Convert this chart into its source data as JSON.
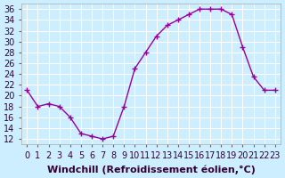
{
  "x": [
    0,
    1,
    2,
    3,
    4,
    5,
    6,
    7,
    8,
    9,
    10,
    11,
    12,
    13,
    14,
    15,
    16,
    17,
    18,
    19,
    20,
    21,
    22,
    23
  ],
  "y": [
    21,
    18,
    18.5,
    18,
    16,
    13,
    12.5,
    12,
    12.5,
    18,
    25,
    28,
    31,
    33,
    34,
    35,
    36,
    36,
    36,
    35,
    29,
    23.5,
    21,
    21
  ],
  "line_color": "#990099",
  "marker": "+",
  "marker_size": 4,
  "bg_color": "#cceeff",
  "grid_color": "#ffffff",
  "xlabel": "Windchill (Refroidissement éolien,°C)",
  "xlim": [
    -0.5,
    23.5
  ],
  "ylim": [
    11,
    37
  ],
  "yticks": [
    12,
    14,
    16,
    18,
    20,
    22,
    24,
    26,
    28,
    30,
    32,
    34,
    36
  ],
  "xticks": [
    0,
    1,
    2,
    3,
    4,
    5,
    6,
    7,
    8,
    9,
    10,
    11,
    12,
    13,
    14,
    15,
    16,
    17,
    18,
    19,
    20,
    21,
    22,
    23
  ],
  "tick_label_fontsize": 7,
  "xlabel_fontsize": 8
}
